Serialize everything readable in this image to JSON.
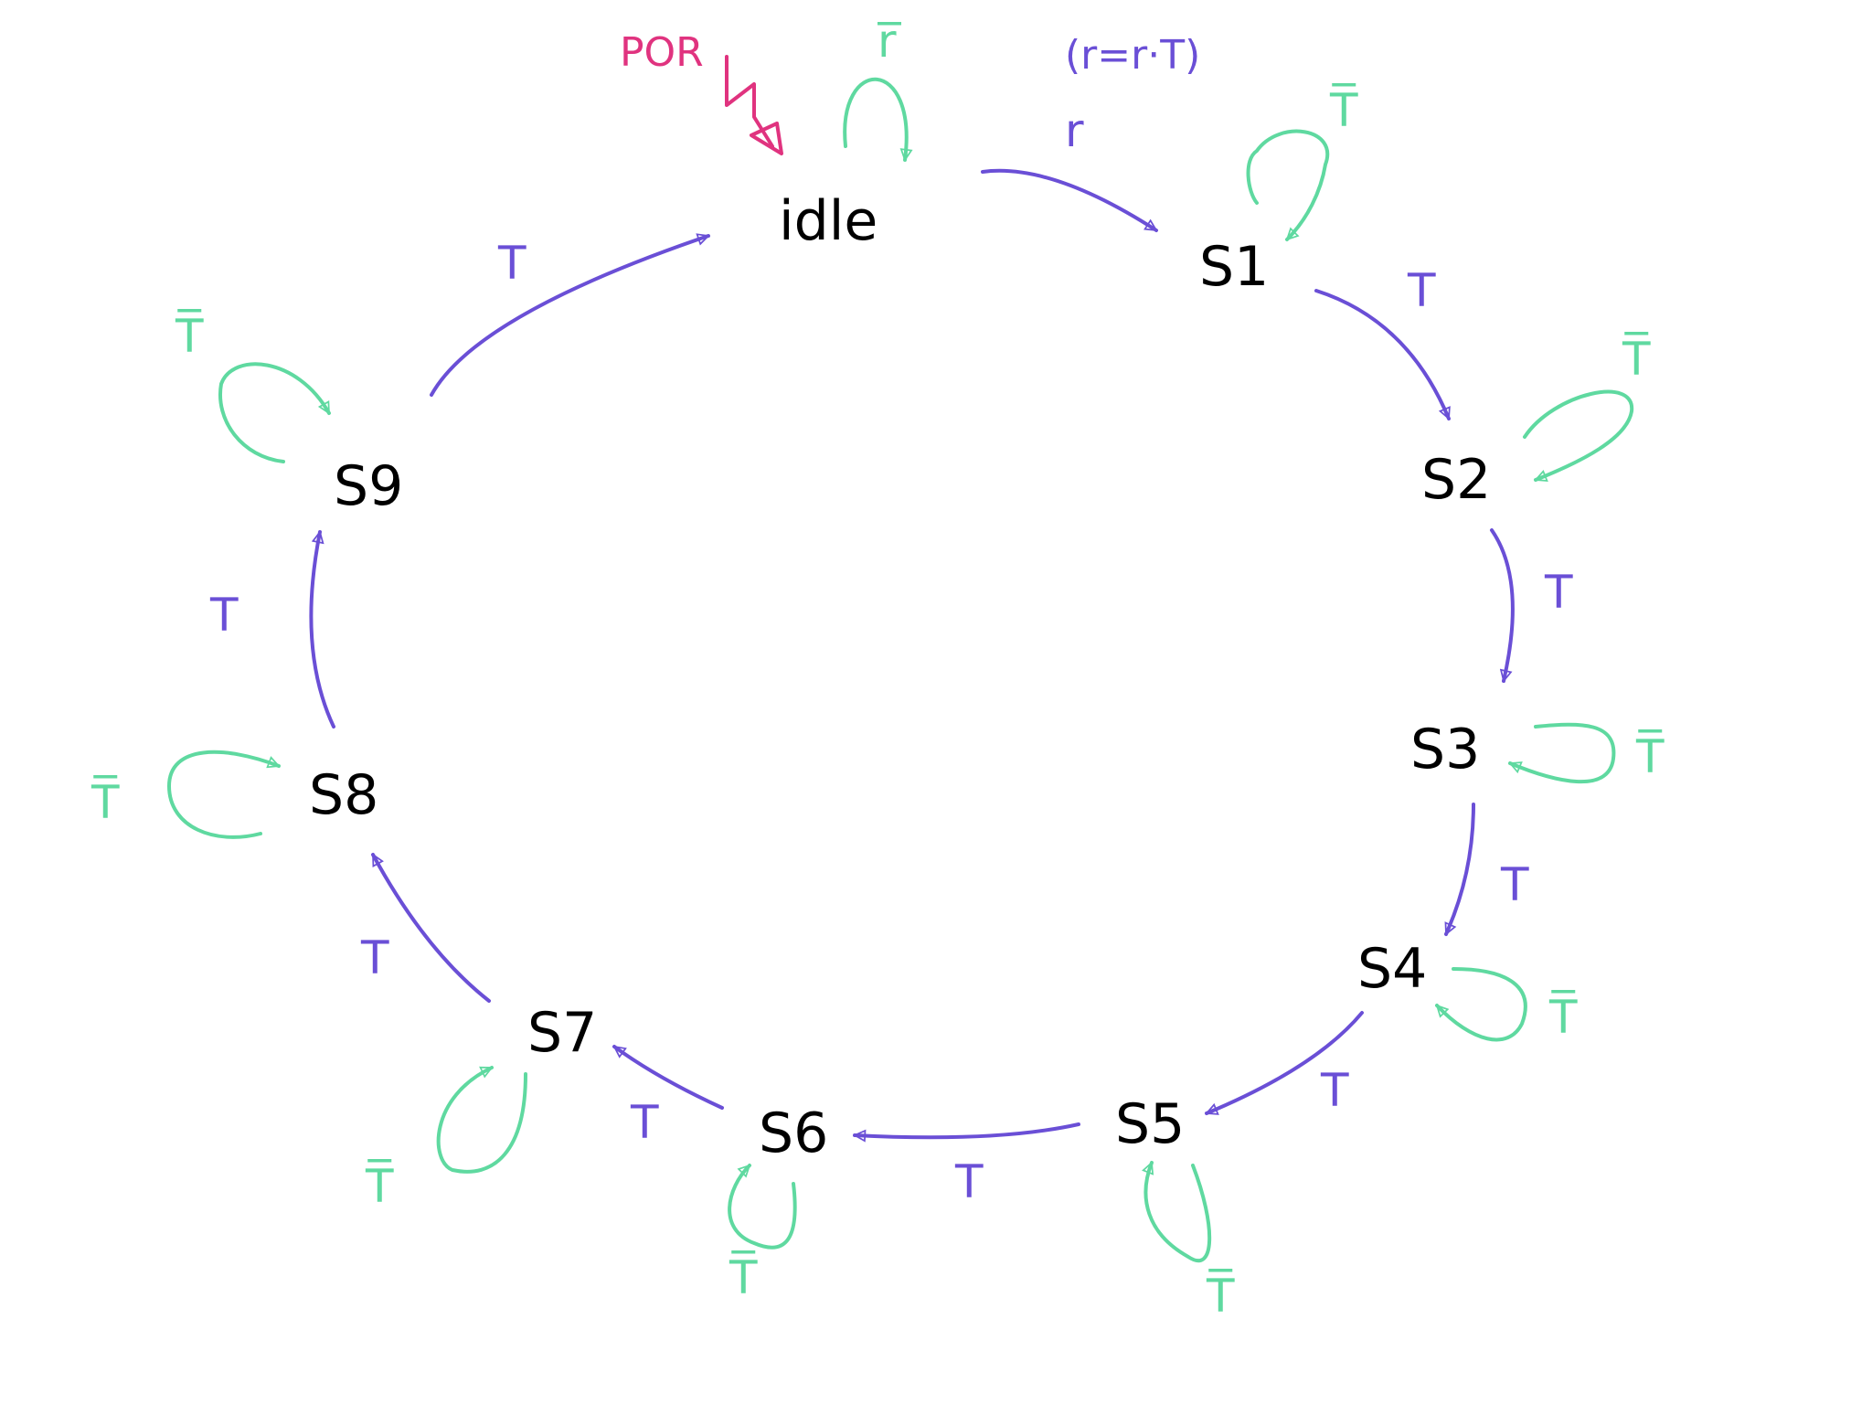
{
  "colors": {
    "transition": "#6a4fd6",
    "selfloop": "#5fd9a0",
    "reset": "#e0337f",
    "state": "#000000"
  },
  "reset_label": "POR",
  "annotation": "(r=r·T)",
  "states": [
    "idle",
    "S1",
    "S2",
    "S3",
    "S4",
    "S5",
    "S6",
    "S7",
    "S8",
    "S9"
  ],
  "transitions": {
    "idle_s1": "r",
    "s1_s2": "T",
    "s2_s3": "T",
    "s3_s4": "T",
    "s4_s5": "T",
    "s5_s6": "T",
    "s6_s7": "T",
    "s7_s8": "T",
    "s8_s9": "T",
    "s9_idle": "T"
  },
  "self_loops": {
    "idle": "r̅",
    "s1": "T̅",
    "s2": "T̅",
    "s3": "T̅",
    "s4": "T̅",
    "s5": "T̅",
    "s6": "T̅",
    "s7": "T̅",
    "s8": "T̅",
    "s9": "T̅"
  }
}
